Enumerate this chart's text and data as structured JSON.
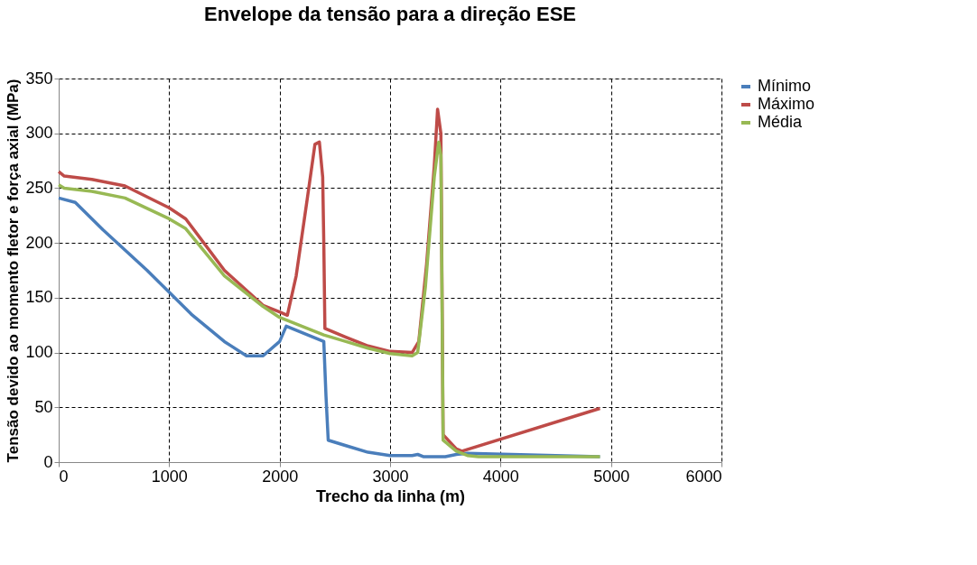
{
  "chart_data": {
    "type": "line",
    "title": "Envelope da tensão para a direção ESE",
    "xlabel": "Trecho da linha (m)",
    "ylabel": "Tensão devido ao momento  fletor e força axial (MPa)",
    "xlim": [
      0,
      6000
    ],
    "xticks": [
      0,
      1000,
      2000,
      3000,
      4000,
      5000,
      6000
    ],
    "ylim": [
      0,
      350
    ],
    "yticks": [
      0,
      50,
      100,
      150,
      200,
      250,
      300,
      350
    ],
    "grid": true,
    "legend": "right",
    "marker": "none",
    "line_style": "solid",
    "series": [
      {
        "name": "Mínimo",
        "color": "#4a7ebb",
        "x": [
          0,
          150,
          400,
          800,
          1200,
          1500,
          1700,
          1850,
          2000,
          2060,
          2400,
          2420,
          2440,
          2600,
          2800,
          3000,
          3200,
          3250,
          3300,
          3500,
          3600,
          3700,
          4900
        ],
        "values": [
          241,
          237,
          212,
          175,
          135,
          110,
          97,
          97,
          110,
          124,
          110,
          60,
          20,
          15,
          9,
          6,
          6,
          7,
          5,
          5,
          7,
          8,
          5
        ]
      },
      {
        "name": "Máximo",
        "color": "#be4b48",
        "x": [
          0,
          50,
          300,
          600,
          1000,
          1150,
          1500,
          1850,
          2000,
          2070,
          2150,
          2250,
          2320,
          2360,
          2390,
          2400,
          2410,
          2600,
          2800,
          3000,
          3200,
          3260,
          3330,
          3400,
          3430,
          3460,
          3480,
          3600,
          3650,
          4900
        ],
        "values": [
          265,
          261,
          258,
          252,
          232,
          222,
          175,
          143,
          137,
          134,
          170,
          240,
          290,
          292,
          260,
          200,
          122,
          114,
          106,
          101,
          100,
          110,
          180,
          270,
          322,
          300,
          25,
          12,
          10,
          49
        ]
      },
      {
        "name": "Média",
        "color": "#98b954",
        "x": [
          0,
          50,
          300,
          600,
          1000,
          1150,
          1500,
          1850,
          2000,
          2200,
          2400,
          2600,
          2800,
          3000,
          3200,
          3250,
          3320,
          3400,
          3440,
          3460,
          3480,
          3600,
          3700,
          3800,
          4900
        ],
        "values": [
          253,
          250,
          247,
          241,
          222,
          213,
          170,
          142,
          132,
          124,
          116,
          110,
          104,
          99,
          97,
          100,
          160,
          260,
          292,
          280,
          20,
          10,
          6,
          5,
          5
        ]
      }
    ]
  }
}
